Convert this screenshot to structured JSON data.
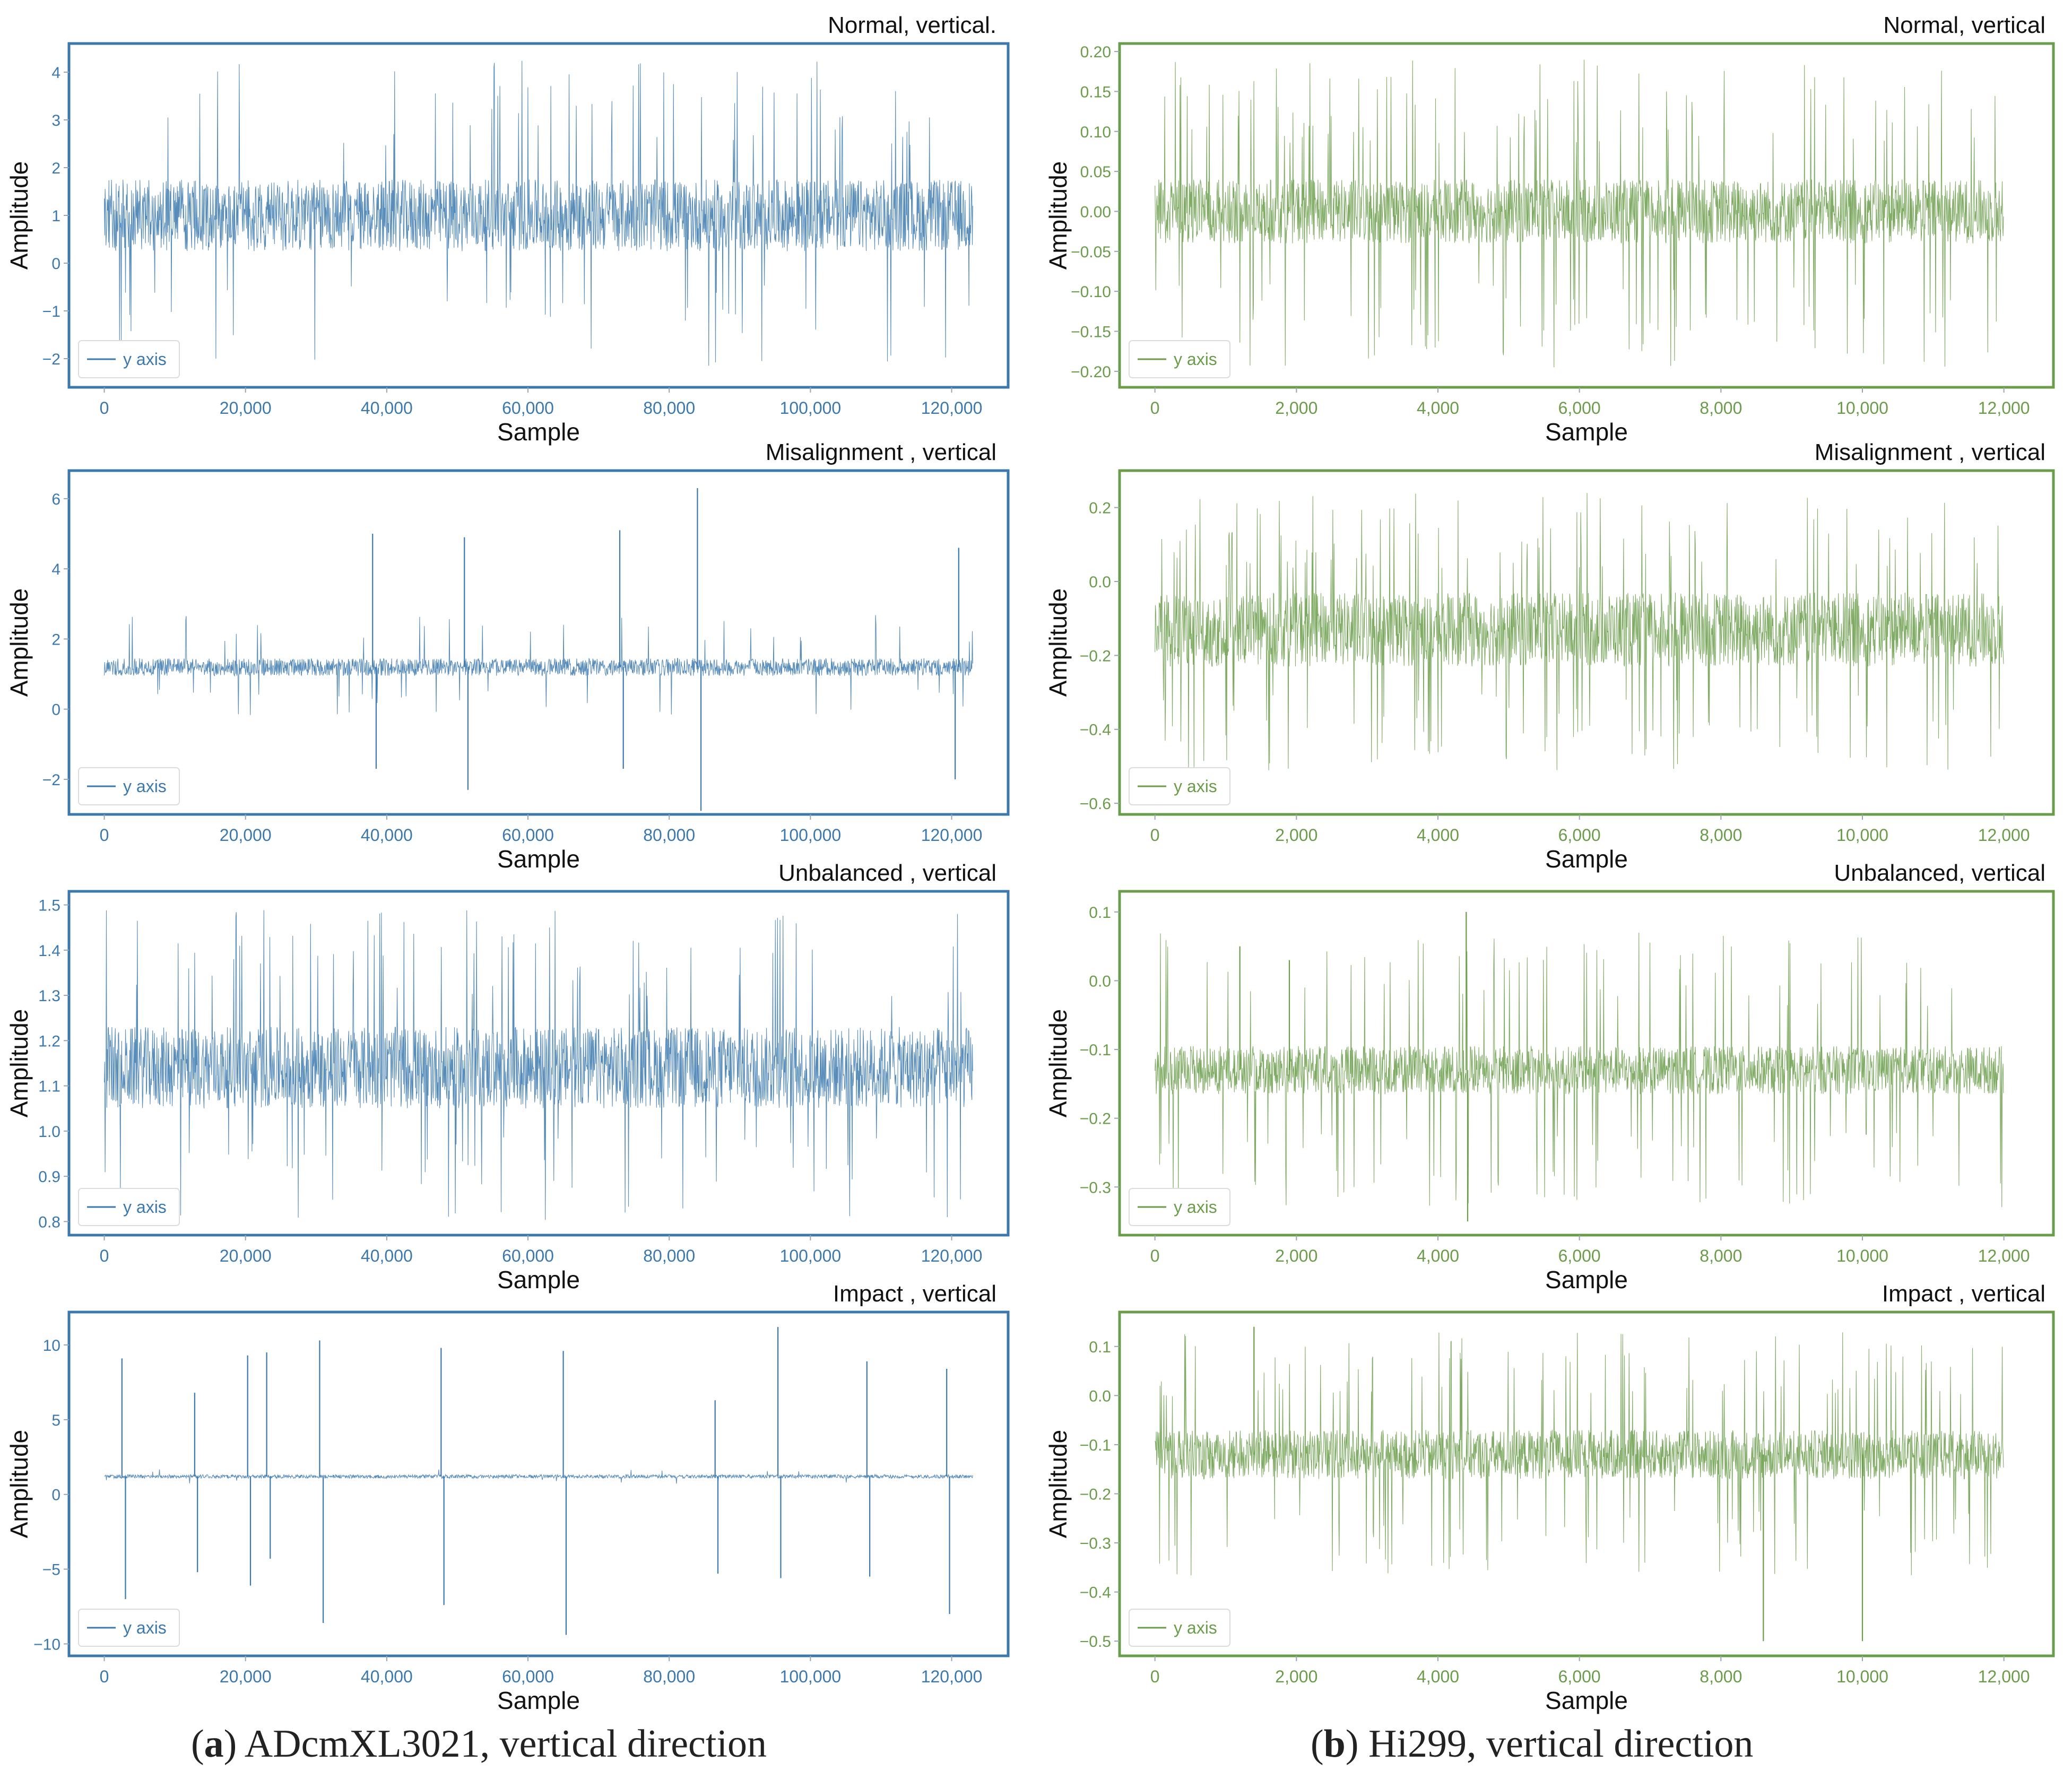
{
  "colors": {
    "blue": "#3b78ad",
    "green": "#6a9c4a"
  },
  "captions": {
    "a": {
      "letter": "a",
      "text": "ADcmXL3021, vertical direction"
    },
    "b": {
      "letter": "b",
      "text": "Hi299, vertical direction"
    }
  },
  "chart_data": [
    {
      "type": "line",
      "column": "a",
      "row": 0,
      "color": "blue",
      "title": "Normal, vertical.",
      "xlabel": "Sample",
      "ylabel": "Amplitude",
      "legend": "y axis",
      "xlim": [
        -5000,
        128000
      ],
      "ylim": [
        -2.6,
        4.6
      ],
      "xticks": [
        0,
        20000,
        40000,
        60000,
        80000,
        100000,
        120000
      ],
      "yticks": [
        -2,
        -1,
        0,
        1,
        2,
        3,
        4
      ],
      "ytick_labels": [
        "−2",
        "−1",
        "0",
        "1",
        "2",
        "3",
        "4"
      ],
      "signal": {
        "x_start": 0,
        "x_end": 123000,
        "baseline": 1.0,
        "noise": 0.75,
        "spike_max": 3.25,
        "spike_min": -3.25,
        "spike_rate": 0.04,
        "peaks": []
      }
    },
    {
      "type": "line",
      "column": "a",
      "row": 1,
      "color": "blue",
      "title": "Misalignment , vertical",
      "xlabel": "Sample",
      "ylabel": "Amplitude",
      "legend": "y axis",
      "xlim": [
        -5000,
        128000
      ],
      "ylim": [
        -3.0,
        6.8
      ],
      "xticks": [
        0,
        20000,
        40000,
        60000,
        80000,
        100000,
        120000
      ],
      "yticks": [
        -2,
        0,
        2,
        4,
        6
      ],
      "ytick_labels": [
        "−2",
        "0",
        "2",
        "4",
        "6"
      ],
      "signal": {
        "x_start": 0,
        "x_end": 123000,
        "baseline": 1.2,
        "noise": 0.25,
        "spike_max": 1.6,
        "spike_min": -1.4,
        "spike_rate": 0.02,
        "peaks": [
          [
            38000,
            5.0
          ],
          [
            38500,
            -1.7
          ],
          [
            51000,
            4.9
          ],
          [
            51500,
            -2.3
          ],
          [
            73000,
            5.1
          ],
          [
            73500,
            -1.7
          ],
          [
            84000,
            6.3
          ],
          [
            84500,
            -2.9
          ],
          [
            121000,
            4.6
          ],
          [
            120500,
            -2.0
          ]
        ]
      }
    },
    {
      "type": "line",
      "column": "a",
      "row": 2,
      "color": "blue",
      "title": "Unbalanced , vertical",
      "xlabel": "Sample",
      "ylabel": "Amplitude",
      "legend": "y axis",
      "xlim": [
        -5000,
        128000
      ],
      "ylim": [
        0.77,
        1.53
      ],
      "xticks": [
        0,
        20000,
        40000,
        60000,
        80000,
        100000,
        120000
      ],
      "yticks": [
        0.8,
        0.9,
        1.0,
        1.1,
        1.2,
        1.3,
        1.4,
        1.5
      ],
      "ytick_labels": [
        "0.8",
        "0.9",
        "1.0",
        "1.1",
        "1.2",
        "1.3",
        "1.4",
        "1.5"
      ],
      "signal": {
        "x_start": 0,
        "x_end": 123000,
        "baseline": 1.14,
        "noise": 0.09,
        "spike_max": 0.35,
        "spike_min": -0.34,
        "spike_rate": 0.05,
        "peaks": []
      }
    },
    {
      "type": "line",
      "column": "a",
      "row": 3,
      "color": "blue",
      "title": "Impact , vertical",
      "xlabel": "Sample",
      "ylabel": "Amplitude",
      "legend": "y axis",
      "xlim": [
        -5000,
        128000
      ],
      "ylim": [
        -10.8,
        12.2
      ],
      "xticks": [
        0,
        20000,
        40000,
        60000,
        80000,
        100000,
        120000
      ],
      "yticks": [
        -10,
        -5,
        0,
        5,
        10
      ],
      "ytick_labels": [
        "−10",
        "−5",
        "0",
        "5",
        "10"
      ],
      "signal": {
        "x_start": 0,
        "x_end": 123000,
        "baseline": 1.2,
        "noise": 0.12,
        "spike_max": 0.5,
        "spike_min": -0.5,
        "spike_rate": 0.01,
        "peaks": [
          [
            2500,
            9.1
          ],
          [
            3000,
            -7.0
          ],
          [
            12800,
            6.8
          ],
          [
            13200,
            -5.2
          ],
          [
            20300,
            9.3
          ],
          [
            20700,
            -6.1
          ],
          [
            23000,
            9.5
          ],
          [
            23500,
            -4.3
          ],
          [
            30500,
            10.3
          ],
          [
            31000,
            -8.6
          ],
          [
            47700,
            9.8
          ],
          [
            48100,
            -7.4
          ],
          [
            65000,
            9.6
          ],
          [
            65400,
            -9.4
          ],
          [
            86500,
            6.3
          ],
          [
            86900,
            -5.3
          ],
          [
            95400,
            11.2
          ],
          [
            95800,
            -5.6
          ],
          [
            108000,
            8.9
          ],
          [
            108400,
            -5.5
          ],
          [
            119300,
            8.4
          ],
          [
            119700,
            -8.0
          ]
        ]
      }
    },
    {
      "type": "line",
      "column": "b",
      "row": 0,
      "color": "green",
      "title": "Normal, vertical",
      "xlabel": "Sample",
      "ylabel": "Amplitude",
      "legend": "y axis",
      "xlim": [
        -500,
        12700
      ],
      "ylim": [
        -0.22,
        0.21
      ],
      "xticks": [
        0,
        2000,
        4000,
        6000,
        8000,
        10000,
        12000
      ],
      "yticks": [
        -0.2,
        -0.15,
        -0.1,
        -0.05,
        0.0,
        0.05,
        0.1,
        0.15,
        0.2
      ],
      "ytick_labels": [
        "−0.20",
        "−0.15",
        "−0.10",
        "−0.05",
        "0.00",
        "0.05",
        "0.10",
        "0.15",
        "0.20"
      ],
      "signal": {
        "x_start": 0,
        "x_end": 12000,
        "baseline": 0.0,
        "noise": 0.04,
        "spike_max": 0.19,
        "spike_min": -0.2,
        "spike_rate": 0.08,
        "peaks": []
      }
    },
    {
      "type": "line",
      "column": "b",
      "row": 1,
      "color": "green",
      "title": "Misalignment , vertical",
      "xlabel": "Sample",
      "ylabel": "Amplitude",
      "legend": "y axis",
      "xlim": [
        -500,
        12700
      ],
      "ylim": [
        -0.63,
        0.3
      ],
      "xticks": [
        0,
        2000,
        4000,
        6000,
        8000,
        10000,
        12000
      ],
      "yticks": [
        -0.6,
        -0.4,
        -0.2,
        0.0,
        0.2
      ],
      "ytick_labels": [
        "−0.6",
        "−0.4",
        "−0.2",
        "0.0",
        "0.2"
      ],
      "signal": {
        "x_start": 0,
        "x_end": 12000,
        "baseline": -0.13,
        "noise": 0.1,
        "spike_max": 0.37,
        "spike_min": -0.39,
        "spike_rate": 0.08,
        "peaks": []
      }
    },
    {
      "type": "line",
      "column": "b",
      "row": 2,
      "color": "green",
      "title": "Unbalanced, vertical",
      "xlabel": "Sample",
      "ylabel": "Amplitude",
      "legend": "y axis",
      "xlim": [
        -500,
        12700
      ],
      "ylim": [
        -0.37,
        0.13
      ],
      "xticks": [
        0,
        2000,
        4000,
        6000,
        8000,
        10000,
        12000
      ],
      "yticks": [
        -0.3,
        -0.2,
        -0.1,
        0.0,
        0.1
      ],
      "ytick_labels": [
        "−0.3",
        "−0.2",
        "−0.1",
        "0.0",
        "0.1"
      ],
      "signal": {
        "x_start": 0,
        "x_end": 12000,
        "baseline": -0.13,
        "noise": 0.035,
        "spike_max": 0.2,
        "spike_min": -0.2,
        "spike_rate": 0.06,
        "peaks": [
          [
            4400,
            0.1
          ],
          [
            4420,
            -0.35
          ],
          [
            1200,
            0.05
          ],
          [
            1900,
            0.03
          ]
        ]
      }
    },
    {
      "type": "line",
      "column": "b",
      "row": 3,
      "color": "green",
      "title": "Impact , vertical",
      "xlabel": "Sample",
      "ylabel": "Amplitude",
      "legend": "y axis",
      "xlim": [
        -500,
        12700
      ],
      "ylim": [
        -0.53,
        0.17
      ],
      "xticks": [
        0,
        2000,
        4000,
        6000,
        8000,
        10000,
        12000
      ],
      "yticks": [
        -0.5,
        -0.4,
        -0.3,
        -0.2,
        -0.1,
        0.0,
        0.1
      ],
      "ytick_labels": [
        "−0.5",
        "−0.4",
        "−0.3",
        "−0.2",
        "−0.1",
        "0.0",
        "0.1"
      ],
      "signal": {
        "x_start": 0,
        "x_end": 12000,
        "baseline": -0.12,
        "noise": 0.05,
        "spike_max": 0.25,
        "spike_min": -0.25,
        "spike_rate": 0.08,
        "peaks": [
          [
            8600,
            -0.5
          ],
          [
            10000,
            -0.5
          ],
          [
            1400,
            0.14
          ]
        ]
      }
    }
  ]
}
